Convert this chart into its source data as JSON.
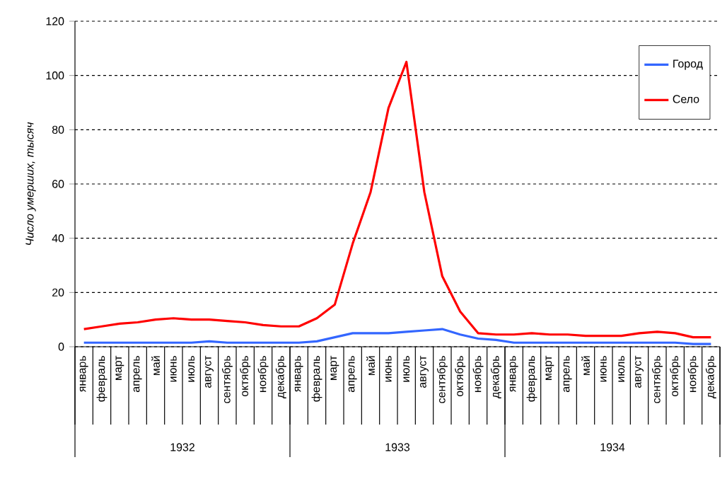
{
  "chart_data": {
    "type": "line",
    "ylabel": "Число умерших, тысяч",
    "categories": [
      "январь",
      "февраль",
      "март",
      "апрель",
      "май",
      "июнь",
      "июль",
      "август",
      "сентябрь",
      "октябрь",
      "ноябрь",
      "декабрь",
      "январь",
      "февраль",
      "март",
      "апрель",
      "май",
      "июнь",
      "июль",
      "август",
      "сентябрь",
      "октябрь",
      "ноябрь",
      "декабрь",
      "январь",
      "февраль",
      "март",
      "апрель",
      "май",
      "июнь",
      "июль",
      "август",
      "сентябрь",
      "октябрь",
      "ноябрь",
      "декабрь"
    ],
    "series": [
      {
        "name": "Город",
        "color": "#3366ff",
        "values": [
          1.5,
          1.5,
          1.5,
          1.5,
          1.5,
          1.5,
          1.5,
          2,
          1.5,
          1.5,
          1.5,
          1.5,
          1.5,
          2,
          3.5,
          5,
          5,
          5,
          5.5,
          6,
          6.5,
          4.5,
          3,
          2.5,
          1.5,
          1.5,
          1.5,
          1.5,
          1.5,
          1.5,
          1.5,
          1.5,
          1.5,
          1.5,
          1,
          1
        ]
      },
      {
        "name": "Село",
        "color": "#ff0000",
        "values": [
          6.5,
          7.5,
          8.5,
          9,
          10,
          10.5,
          10,
          10,
          9.5,
          9,
          8,
          7.5,
          7.5,
          10.5,
          15.5,
          38,
          57,
          88,
          105,
          57,
          26,
          13,
          5,
          4.5,
          4.5,
          5,
          4.5,
          4.5,
          4,
          4,
          4,
          5,
          5.5,
          5,
          3.5,
          3.5
        ]
      }
    ],
    "ylim": [
      0,
      120
    ],
    "yticks": [
      0,
      20,
      40,
      60,
      80,
      100,
      120
    ],
    "grid": "y",
    "legend": "top right",
    "marker": "none",
    "line_style": "solid",
    "annotations": [
      "1932",
      "1933",
      "1934"
    ]
  }
}
